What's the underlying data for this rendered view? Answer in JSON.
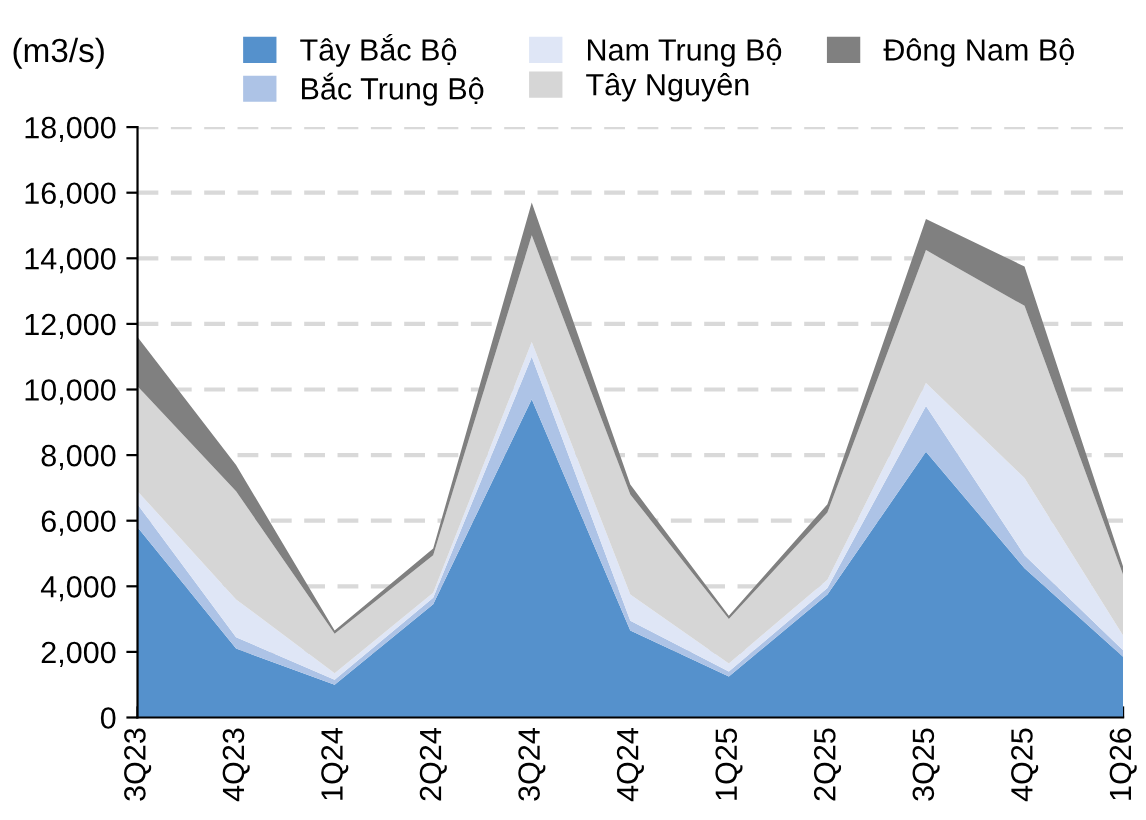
{
  "chart_data": {
    "type": "area",
    "stacked": true,
    "ylabel": "(m3/s)",
    "categories": [
      "3Q23",
      "4Q23",
      "1Q24",
      "2Q24",
      "3Q24",
      "4Q24",
      "1Q25",
      "2Q25",
      "3Q25",
      "4Q25",
      "1Q26"
    ],
    "series": [
      {
        "name": "Tây Bắc Bộ",
        "color": "#5591cc",
        "values": [
          5800,
          2100,
          1000,
          3450,
          9700,
          2650,
          1250,
          3750,
          8100,
          4550,
          1850
        ]
      },
      {
        "name": "Bắc Trung Bộ",
        "color": "#adc3e6",
        "values": [
          700,
          350,
          150,
          200,
          1300,
          300,
          150,
          200,
          1400,
          400,
          200
        ]
      },
      {
        "name": "Nam Trung Bộ",
        "color": "#dfe6f6",
        "values": [
          400,
          1150,
          200,
          150,
          450,
          800,
          250,
          250,
          700,
          2350,
          450
        ]
      },
      {
        "name": "Tây Nguyên",
        "color": "#d6d6d6",
        "values": [
          3200,
          3300,
          1200,
          1150,
          3250,
          3050,
          1350,
          2050,
          4050,
          5250,
          1850
        ]
      },
      {
        "name": "Đông Nam Bộ",
        "color": "#808080",
        "values": [
          1500,
          800,
          100,
          200,
          1000,
          300,
          100,
          250,
          950,
          1200,
          250
        ]
      }
    ],
    "ylim": [
      0,
      18000
    ],
    "yticks": [
      0,
      {
        "value": 2000,
        "label": "2,000"
      },
      {
        "value": 4000,
        "label": "4,000"
      },
      {
        "value": 6000,
        "label": "6,000"
      },
      {
        "value": 8000,
        "label": "8,000"
      },
      {
        "value": 10000,
        "label": "10,000"
      },
      {
        "value": 12000,
        "label": "12,000"
      },
      {
        "value": 14000,
        "label": "14,000"
      },
      {
        "value": 16000,
        "label": "16,000"
      },
      {
        "value": 18000,
        "label": "18,000"
      }
    ],
    "grid": "y",
    "legend": "top"
  }
}
